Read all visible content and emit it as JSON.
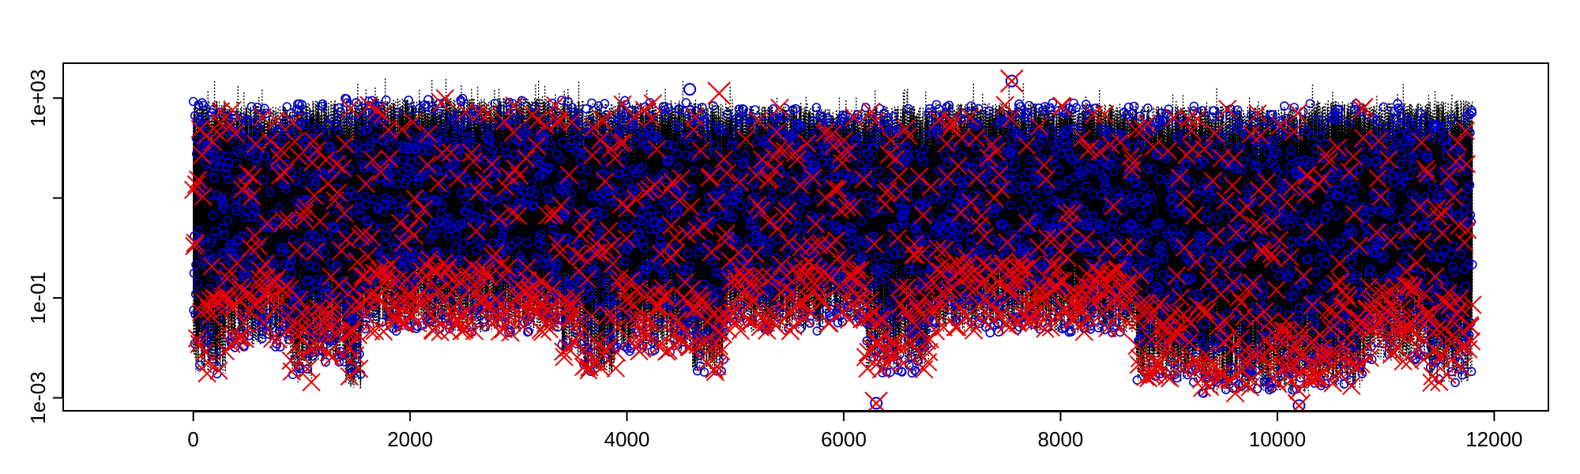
{
  "chart_data": {
    "type": "scatter",
    "title": "",
    "xlabel": "",
    "ylabel": "",
    "xlim": [
      -1200,
      12500
    ],
    "ylim": [
      0.00055,
      5000
    ],
    "y_scale": "log",
    "grid": false,
    "legend": "none",
    "x_ticks": [
      0,
      2000,
      4000,
      6000,
      8000,
      10000,
      12000
    ],
    "x_tick_labels": [
      "0",
      "2000",
      "4000",
      "6000",
      "8000",
      "10000",
      "12000"
    ],
    "y_ticks": [
      0.001,
      0.1,
      1000
    ],
    "y_tick_labels": [
      "1e-03",
      "1e-01",
      "1e+03"
    ],
    "y_minor_ticks": [
      10
    ],
    "n_points": 11800,
    "series": [
      {
        "style": "dotted vertical segments",
        "color": "#000000",
        "typical_range": [
          0.05,
          1000
        ],
        "max": 2500,
        "min": 0.0009
      },
      {
        "style": "open circles",
        "color": "#0000cc",
        "typical_range": [
          0.002,
          1000
        ]
      },
      {
        "style": "crosses",
        "color": "#e60000",
        "typical_range": [
          0.0007,
          1200
        ],
        "max": 2200
      }
    ],
    "bands": [
      {
        "x": [
          0,
          300
        ],
        "low": 0.003,
        "high": 900
      },
      {
        "x": [
          300,
          900
        ],
        "low": 0.01,
        "high": 700
      },
      {
        "x": [
          900,
          1100
        ],
        "low": 0.002,
        "high": 800
      },
      {
        "x": [
          1100,
          1400
        ],
        "low": 0.005,
        "high": 900
      },
      {
        "x": [
          1400,
          1550
        ],
        "low": 0.0015,
        "high": 1000
      },
      {
        "x": [
          1550,
          3400
        ],
        "low": 0.02,
        "high": 1000
      },
      {
        "x": [
          3400,
          3600
        ],
        "low": 0.006,
        "high": 900
      },
      {
        "x": [
          3600,
          3900
        ],
        "low": 0.003,
        "high": 800
      },
      {
        "x": [
          3900,
          4600
        ],
        "low": 0.008,
        "high": 900
      },
      {
        "x": [
          4600,
          4900
        ],
        "low": 0.003,
        "high": 800
      },
      {
        "x": [
          4900,
          5800
        ],
        "low": 0.02,
        "high": 700
      },
      {
        "x": [
          5800,
          6200
        ],
        "low": 0.03,
        "high": 600
      },
      {
        "x": [
          6200,
          6800
        ],
        "low": 0.003,
        "high": 700
      },
      {
        "x": [
          6800,
          8700
        ],
        "low": 0.02,
        "high": 800
      },
      {
        "x": [
          8700,
          9300
        ],
        "low": 0.002,
        "high": 700
      },
      {
        "x": [
          9300,
          10300
        ],
        "low": 0.0012,
        "high": 700
      },
      {
        "x": [
          10300,
          10800
        ],
        "low": 0.0015,
        "high": 900
      },
      {
        "x": [
          10800,
          11400
        ],
        "low": 0.005,
        "high": 800
      },
      {
        "x": [
          11400,
          11800
        ],
        "low": 0.002,
        "high": 900
      }
    ],
    "highlights": [
      {
        "x": 7550,
        "y": 2200,
        "marker": "cross-circle"
      },
      {
        "x": 4850,
        "y": 1250,
        "marker": "cross"
      },
      {
        "x": 4580,
        "y": 1500,
        "marker": "circle"
      },
      {
        "x": 6300,
        "y": 0.00078,
        "marker": "cross-circle"
      },
      {
        "x": 10200,
        "y": 0.0007,
        "marker": "cross-circle"
      }
    ]
  }
}
